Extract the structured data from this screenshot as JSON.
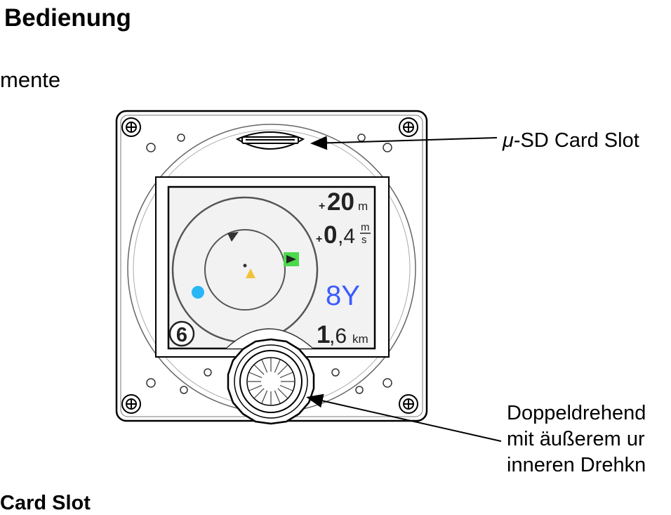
{
  "headings": {
    "section_title": "Bedienung",
    "subsection_title": "mente",
    "bottom_title": "Card Slot"
  },
  "callouts": {
    "sd_card_prefix": "μ",
    "sd_card_rest": "-SD Card Slot",
    "knob_line1": "Doppeldrehend",
    "knob_line2": "mit äußerem ur",
    "knob_line3": "inneren Drehkn"
  },
  "display": {
    "altitude_sign": "+",
    "altitude_value": "20",
    "altitude_unit": "m",
    "vario_sign": "+",
    "vario_value_int": "0",
    "vario_value_dec": ",4",
    "vario_unit_top": "m",
    "vario_unit_bottom": "s",
    "waypoint_id": "8Y",
    "distance_value_int": "1",
    "distance_value_dec": ",6",
    "distance_unit": "km",
    "counter": "6"
  },
  "colors": {
    "waypoint_text": "#3b5bff",
    "aircraft_marker": "#f2c33a",
    "target_box": "#4cd94c",
    "thermal_dot": "#29b6f6"
  }
}
